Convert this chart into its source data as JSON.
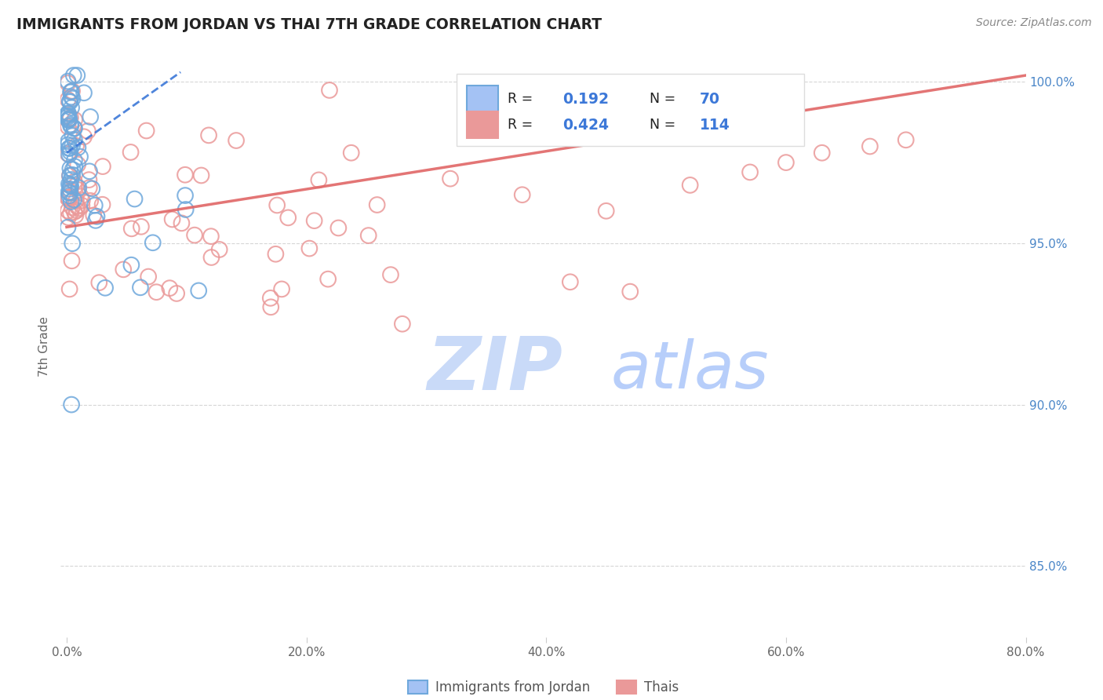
{
  "title": "IMMIGRANTS FROM JORDAN VS THAI 7TH GRADE CORRELATION CHART",
  "source": "Source: ZipAtlas.com",
  "ylabel": "7th Grade",
  "xlim": [
    -0.005,
    0.8
  ],
  "ylim": [
    0.828,
    1.008
  ],
  "ytick_vals": [
    0.85,
    0.9,
    0.95,
    1.0
  ],
  "ytick_labels": [
    "85.0%",
    "90.0%",
    "95.0%",
    "100.0%"
  ],
  "xtick_vals": [
    0.0,
    0.2,
    0.4,
    0.6,
    0.8
  ],
  "xtick_labels": [
    "0.0%",
    "20.0%",
    "40.0%",
    "60.0%",
    "80.0%"
  ],
  "jordan_R": 0.192,
  "jordan_N": 70,
  "thai_R": 0.424,
  "thai_N": 114,
  "jordan_color": "#6fa8dc",
  "thai_color": "#ea9999",
  "jordan_line_color": "#3c78d8",
  "thai_line_color": "#e06666",
  "legend_jordan_fill": "#a4c2f4",
  "legend_thai_fill": "#ea9999",
  "background_color": "#ffffff",
  "grid_color": "#cccccc",
  "watermark_zip_color": "#c9daf8",
  "watermark_atlas_color": "#b7cefa",
  "jordan_line_x0": 0.0,
  "jordan_line_y0": 0.978,
  "jordan_line_x1": 0.095,
  "jordan_line_y1": 1.003,
  "thai_line_x0": 0.0,
  "thai_line_y0": 0.955,
  "thai_line_x1": 0.8,
  "thai_line_y1": 1.002
}
